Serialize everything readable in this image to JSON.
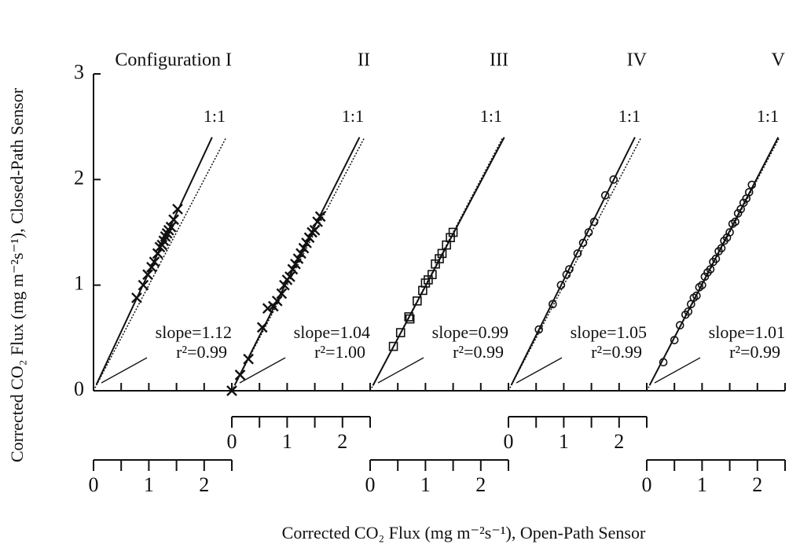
{
  "chart_data": {
    "type": "scatter",
    "y_label": "Corrected CO₂ Flux (mg m⁻²s⁻¹), Closed-Path Sensor",
    "x_label": "Corrected CO₂ Flux (mg m⁻²s⁻¹), Open-Path Sensor",
    "ylim": [
      0,
      3
    ],
    "yticks": [
      0,
      1,
      2,
      3
    ],
    "xlim": [
      0,
      2.5
    ],
    "xticks": [
      0,
      1,
      2
    ],
    "xminorticks": [
      0.5,
      1.5,
      2.5
    ],
    "reference_label": "1:1",
    "panels": [
      {
        "name": "Configuration I",
        "marker": "x",
        "slope": 1.12,
        "slope_label": "slope=1.12",
        "r2_label": "r²=0.99",
        "x": [
          0.78,
          0.9,
          0.98,
          1.05,
          1.1,
          1.16,
          1.2,
          1.24,
          1.27,
          1.3,
          1.33,
          1.36,
          1.4,
          1.45,
          1.52
        ],
        "y": [
          0.88,
          1.0,
          1.1,
          1.17,
          1.22,
          1.3,
          1.36,
          1.38,
          1.42,
          1.46,
          1.49,
          1.52,
          1.55,
          1.62,
          1.72
        ]
      },
      {
        "name": "II",
        "marker": "x",
        "slope": 1.04,
        "slope_label": "slope=1.04",
        "r2_label": "r²=1.00",
        "x": [
          0.0,
          0.15,
          0.3,
          0.55,
          0.65,
          0.75,
          0.82,
          0.9,
          0.95,
          1.0,
          1.05,
          1.1,
          1.15,
          1.2,
          1.25,
          1.3,
          1.35,
          1.4,
          1.45,
          1.5,
          1.55,
          1.6
        ],
        "y": [
          0.0,
          0.15,
          0.3,
          0.6,
          0.78,
          0.8,
          0.85,
          0.92,
          1.0,
          1.05,
          1.08,
          1.15,
          1.2,
          1.25,
          1.3,
          1.35,
          1.4,
          1.45,
          1.5,
          1.52,
          1.6,
          1.65
        ]
      },
      {
        "name": "III",
        "marker": "square",
        "slope": 0.99,
        "slope_label": "slope=0.99",
        "r2_label": "r²=0.99",
        "x": [
          0.42,
          0.55,
          0.7,
          0.72,
          0.85,
          0.95,
          1.0,
          1.05,
          1.12,
          1.18,
          1.25,
          1.3,
          1.38,
          1.45,
          1.5
        ],
        "y": [
          0.42,
          0.55,
          0.7,
          0.68,
          0.85,
          0.95,
          1.02,
          1.05,
          1.1,
          1.2,
          1.25,
          1.3,
          1.38,
          1.45,
          1.5
        ]
      },
      {
        "name": "IV",
        "marker": "circle",
        "slope": 1.05,
        "slope_label": "slope=1.05",
        "r2_label": "r²=0.99",
        "x": [
          0.55,
          0.8,
          0.95,
          1.05,
          1.1,
          1.25,
          1.35,
          1.45,
          1.55,
          1.75,
          1.9
        ],
        "y": [
          0.58,
          0.82,
          1.0,
          1.1,
          1.15,
          1.3,
          1.4,
          1.5,
          1.6,
          1.85,
          2.0
        ]
      },
      {
        "name": "V",
        "marker": "circle",
        "slope": 1.01,
        "slope_label": "slope=1.01",
        "r2_label": "r²=0.99",
        "x": [
          0.3,
          0.5,
          0.6,
          0.7,
          0.75,
          0.8,
          0.85,
          0.9,
          0.95,
          1.0,
          1.05,
          1.1,
          1.15,
          1.2,
          1.25,
          1.3,
          1.35,
          1.4,
          1.45,
          1.5,
          1.55,
          1.6,
          1.65,
          1.7,
          1.75,
          1.8,
          1.85,
          1.9
        ],
        "y": [
          0.27,
          0.48,
          0.62,
          0.72,
          0.75,
          0.82,
          0.88,
          0.9,
          0.98,
          1.0,
          1.08,
          1.12,
          1.15,
          1.22,
          1.25,
          1.32,
          1.35,
          1.42,
          1.45,
          1.5,
          1.58,
          1.6,
          1.68,
          1.72,
          1.78,
          1.82,
          1.88,
          1.95
        ]
      }
    ]
  }
}
